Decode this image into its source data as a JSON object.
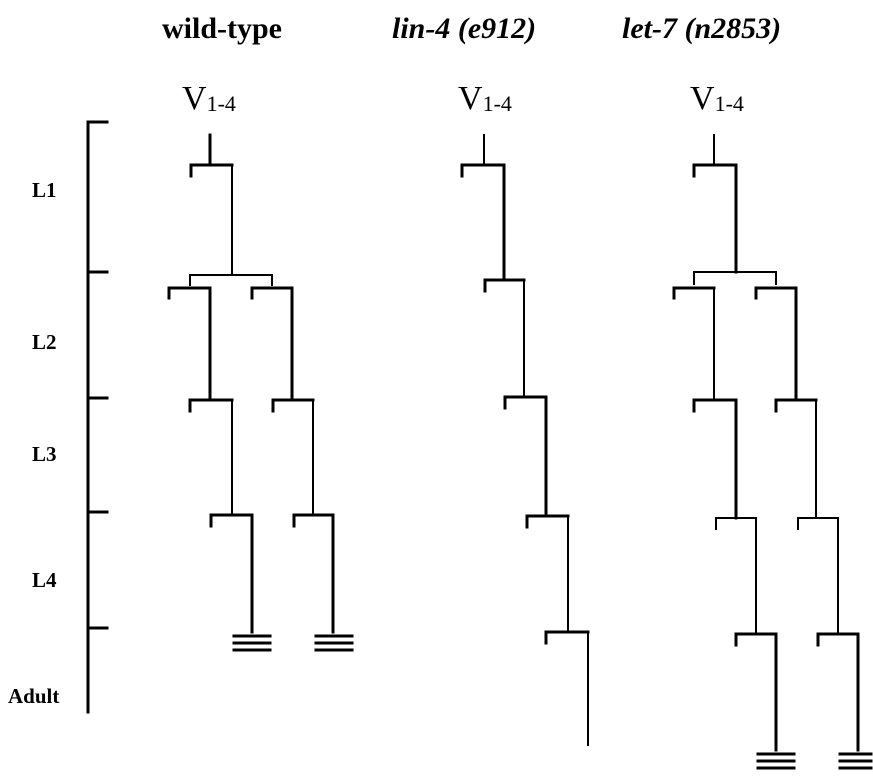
{
  "titles": {
    "wild_type": "wild-type",
    "lin4": "lin-4 (e912)",
    "let7": "let-7 (n2853)"
  },
  "root_label": {
    "base": "V",
    "sub": "1-4"
  },
  "stages": [
    "L1",
    "L2",
    "L3",
    "L4",
    "Adult"
  ]
}
